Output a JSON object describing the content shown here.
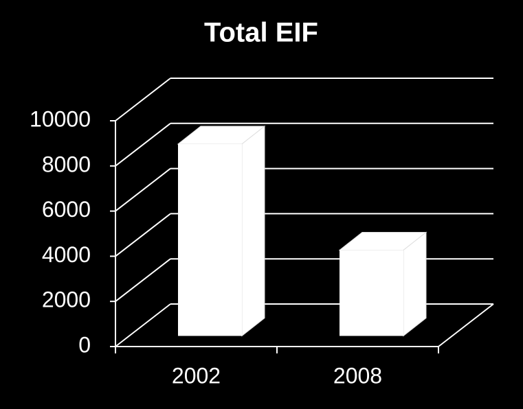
{
  "chart_data": {
    "type": "bar3d",
    "title": "Total EIF",
    "categories": [
      "2002",
      "2008"
    ],
    "values": [
      8500,
      3800
    ],
    "color": "#ffffff",
    "ylim": [
      0,
      10000
    ],
    "yticks": [
      0,
      2000,
      4000,
      6000,
      8000,
      10000
    ],
    "grid": true
  }
}
